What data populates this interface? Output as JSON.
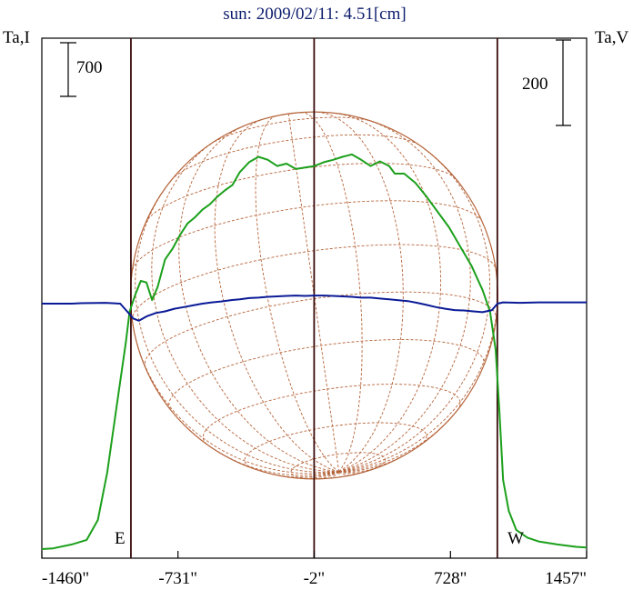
{
  "chart_data": {
    "type": "line",
    "title": "sun: 2009/02/11: 4.51[cm]",
    "left_axis_label": "Ta,I",
    "right_axis_label": "Ta,V",
    "left_scale_bar": {
      "label": "700",
      "value": 700
    },
    "right_scale_bar": {
      "label": "200",
      "value": 200
    },
    "x_tick_labels": [
      "-1460\"",
      "-731\"",
      "-2\"",
      "728\"",
      "1457\""
    ],
    "x_ticks": [
      -1460,
      -731,
      -2,
      728,
      1457
    ],
    "xlim": [
      -1460,
      1457
    ],
    "limb_markers": [
      {
        "label": "E",
        "x": -983
      },
      {
        "label": "W",
        "x": 979
      }
    ],
    "center_line_x": -2,
    "solar_disk": {
      "radius_arcsec": 983,
      "grid": true,
      "color": "#b5643a"
    },
    "series": [
      {
        "color": "#1ca01c",
        "axis": "I",
        "points": [
          [
            -1460,
            0
          ],
          [
            -1400,
            10
          ],
          [
            -1300,
            60
          ],
          [
            -1220,
            120
          ],
          [
            -1160,
            380
          ],
          [
            -1110,
            1000
          ],
          [
            -1060,
            1850
          ],
          [
            -1010,
            2700
          ],
          [
            -990,
            3100
          ],
          [
            -960,
            3320
          ],
          [
            -930,
            3500
          ],
          [
            -900,
            3480
          ],
          [
            -870,
            3250
          ],
          [
            -840,
            3420
          ],
          [
            -800,
            3780
          ],
          [
            -760,
            3920
          ],
          [
            -720,
            4100
          ],
          [
            -680,
            4250
          ],
          [
            -640,
            4330
          ],
          [
            -600,
            4430
          ],
          [
            -560,
            4500
          ],
          [
            -520,
            4600
          ],
          [
            -480,
            4680
          ],
          [
            -440,
            4750
          ],
          [
            -400,
            4920
          ],
          [
            -350,
            5050
          ],
          [
            -300,
            5120
          ],
          [
            -250,
            5080
          ],
          [
            -200,
            5000
          ],
          [
            -150,
            5030
          ],
          [
            -100,
            4960
          ],
          [
            -50,
            4980
          ],
          [
            0,
            5000
          ],
          [
            50,
            5050
          ],
          [
            100,
            5080
          ],
          [
            150,
            5120
          ],
          [
            200,
            5150
          ],
          [
            250,
            5080
          ],
          [
            300,
            5000
          ],
          [
            350,
            5060
          ],
          [
            400,
            5000
          ],
          [
            430,
            4900
          ],
          [
            480,
            4900
          ],
          [
            540,
            4780
          ],
          [
            600,
            4600
          ],
          [
            660,
            4400
          ],
          [
            720,
            4200
          ],
          [
            780,
            3950
          ],
          [
            840,
            3700
          ],
          [
            900,
            3380
          ],
          [
            940,
            3100
          ],
          [
            970,
            2600
          ],
          [
            990,
            1800
          ],
          [
            1010,
            900
          ],
          [
            1040,
            500
          ],
          [
            1080,
            250
          ],
          [
            1140,
            150
          ],
          [
            1200,
            100
          ],
          [
            1300,
            60
          ],
          [
            1400,
            30
          ],
          [
            1457,
            20
          ]
        ]
      },
      {
        "color": "#0a1a96",
        "axis": "V",
        "points": [
          [
            -1460,
            0
          ],
          [
            -1300,
            0
          ],
          [
            -1250,
            1
          ],
          [
            -1120,
            2
          ],
          [
            -1040,
            0
          ],
          [
            -1000,
            -20
          ],
          [
            -970,
            -35
          ],
          [
            -940,
            -40
          ],
          [
            -900,
            -30
          ],
          [
            -850,
            -22
          ],
          [
            -800,
            -18
          ],
          [
            -750,
            -12
          ],
          [
            -700,
            -8
          ],
          [
            -650,
            -4
          ],
          [
            -600,
            0
          ],
          [
            -550,
            3
          ],
          [
            -500,
            5
          ],
          [
            -450,
            8
          ],
          [
            -400,
            10
          ],
          [
            -350,
            13
          ],
          [
            -300,
            14
          ],
          [
            -250,
            16
          ],
          [
            -200,
            17
          ],
          [
            -150,
            18
          ],
          [
            -100,
            19
          ],
          [
            -50,
            18
          ],
          [
            0,
            19
          ],
          [
            50,
            19
          ],
          [
            100,
            18
          ],
          [
            150,
            17
          ],
          [
            200,
            16
          ],
          [
            250,
            14
          ],
          [
            300,
            14
          ],
          [
            350,
            12
          ],
          [
            400,
            10
          ],
          [
            450,
            8
          ],
          [
            500,
            6
          ],
          [
            550,
            2
          ],
          [
            600,
            -3
          ],
          [
            650,
            -8
          ],
          [
            700,
            -12
          ],
          [
            750,
            -15
          ],
          [
            800,
            -16
          ],
          [
            850,
            -18
          ],
          [
            900,
            -20
          ],
          [
            950,
            -15
          ],
          [
            980,
            0
          ],
          [
            1010,
            3
          ],
          [
            1100,
            2
          ],
          [
            1200,
            3
          ],
          [
            1300,
            3
          ],
          [
            1457,
            3
          ]
        ]
      }
    ]
  }
}
